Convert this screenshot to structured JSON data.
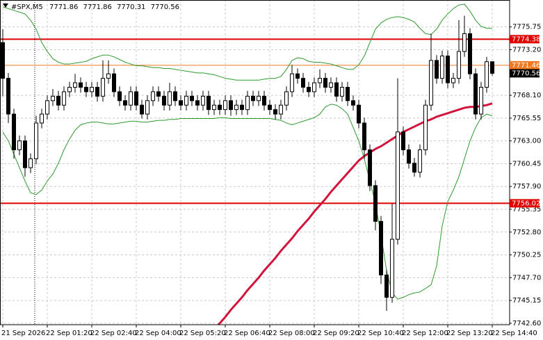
{
  "chart_data": {
    "type": "candlestick",
    "symbol": "#SPX,M5",
    "categories": [
      "21 Sep 2026",
      null,
      null,
      null,
      null,
      null,
      null,
      null,
      "22 Sep 01:20",
      null,
      null,
      null,
      null,
      null,
      null,
      null,
      "22 Sep 02:40",
      null,
      null,
      null,
      null,
      null,
      null,
      null,
      "22 Sep 04:00",
      null,
      null,
      null,
      null,
      null,
      null,
      null,
      "22 Sep 05:20",
      null,
      null,
      null,
      null,
      null,
      null,
      null,
      "22 Sep 06:40",
      null,
      null,
      null,
      null,
      null,
      null,
      null,
      "22 Sep 08:00",
      null,
      null,
      null,
      null,
      null,
      null,
      null,
      "22 Sep 09:20",
      null,
      null,
      null,
      null,
      null,
      null,
      null,
      "22 Sep 10:40",
      null,
      null,
      null,
      null,
      null,
      null,
      null,
      "22 Sep 12:00",
      null,
      null,
      null,
      null,
      null,
      null,
      null,
      "22 Sep 13:20",
      null,
      null,
      null,
      null,
      null,
      null,
      null,
      "22 Sep 14:40"
    ],
    "open": [
      7774,
      7770,
      7766,
      7762,
      7763,
      7760,
      7761,
      7765,
      7766,
      7767.5,
      7768,
      7767,
      7768.5,
      7769,
      7769.5,
      7769,
      7768.5,
      7769,
      7768,
      7770,
      7770.5,
      7768.5,
      7767.5,
      7767,
      7768.5,
      7767,
      7766,
      7767.5,
      7768.5,
      7768,
      7767,
      7768.5,
      7767.5,
      7767,
      7768,
      7767.5,
      7767,
      7768,
      7766.5,
      7767,
      7766.5,
      7767.5,
      7766.5,
      7767,
      7766.5,
      7768,
      7767.5,
      7768,
      7767,
      7766.5,
      7766,
      7767,
      7768.5,
      7770.5,
      7770,
      7769,
      7768.5,
      7769.5,
      7770,
      7769,
      7769.5,
      7768,
      7769,
      7767.5,
      7767,
      7765,
      7762,
      7758,
      7754,
      7748,
      7745.5,
      7752,
      7764,
      7762,
      7760.5,
      7759.5,
      7762,
      7767,
      7772,
      7770,
      7772.5,
      7769.5,
      7770,
      7773,
      7775,
      7770.5,
      7766,
      7769,
      7771.86
    ],
    "high": [
      7775.5,
      7770.6,
      7766.6,
      7763.6,
      7763.6,
      7761.6,
      7765.8,
      7766.6,
      7768.1,
      7768.8,
      7768.6,
      7769.1,
      7769.6,
      7770.5,
      7770.1,
      7769.6,
      7769.6,
      7769.6,
      7772,
      7772,
      7771.1,
      7769.1,
      7768.1,
      7769.1,
      7769.1,
      7767.6,
      7768.1,
      7769.1,
      7769.1,
      7768.6,
      7769.5,
      7769.1,
      7768.1,
      7768.6,
      7768.6,
      7768.1,
      7768.6,
      7768.6,
      7767.6,
      7767.6,
      7768.1,
      7768.1,
      7767.6,
      7767.6,
      7768.6,
      7768.6,
      7768.6,
      7768.6,
      7767.6,
      7767.1,
      7767.6,
      7769.1,
      7771.5,
      7771.1,
      7770.6,
      7769.6,
      7770.1,
      7771,
      7770.6,
      7770.1,
      7770.1,
      7769.6,
      7769.6,
      7768.1,
      7767.6,
      7765.6,
      7762.6,
      7758.6,
      7754.6,
      7748.6,
      7756,
      7770,
      7764.6,
      7762.6,
      7761.1,
      7762.6,
      7767.6,
      7775,
      7772.6,
      7773.1,
      7773.1,
      7770.6,
      7776.5,
      7777,
      7775.6,
      7771.1,
      7769.6,
      7772.4,
      7771.86
    ],
    "low": [
      7768,
      7765,
      7761,
      7761.4,
      7759,
      7759.4,
      7760.4,
      7764.4,
      7765.4,
      7766.9,
      7766.4,
      7766.4,
      7767.9,
      7768.4,
      7768.4,
      7767.9,
      7767.9,
      7767.4,
      7767.4,
      7769.4,
      7767.9,
      7766.9,
      7766.4,
      7766.4,
      7766.4,
      7765.5,
      7765.4,
      7766.9,
      7767.4,
      7766.4,
      7766.4,
      7766.9,
      7766.4,
      7766.4,
      7766.9,
      7766.4,
      7766.4,
      7765.9,
      7765.9,
      7765.9,
      7765.9,
      7765.8,
      7765.9,
      7765.9,
      7765.9,
      7766.9,
      7766.9,
      7766.4,
      7765.9,
      7765.4,
      7765.4,
      7766.4,
      7767.9,
      7769.4,
      7768.4,
      7767.9,
      7767.9,
      7768.9,
      7768.4,
      7768.4,
      7767.4,
      7767.4,
      7766.9,
      7766.4,
      7764.4,
      7761,
      7757.4,
      7753,
      7747,
      7744,
      7744.9,
      7751.4,
      7761.4,
      7759.9,
      7759,
      7758.9,
      7761.4,
      7766.4,
      7769.4,
      7769.4,
      7768.9,
      7768.9,
      7769.4,
      7772.4,
      7769.9,
      7765.4,
      7765.4,
      7768.4,
      7770.31
    ],
    "close": [
      7770,
      7766,
      7762,
      7763,
      7760,
      7761,
      7765,
      7766,
      7767.5,
      7768,
      7767,
      7768.5,
      7769,
      7769.5,
      7769,
      7768.5,
      7769,
      7768,
      7770,
      7770.5,
      7768.5,
      7767.5,
      7767,
      7768.5,
      7767,
      7766,
      7767.5,
      7768.5,
      7768,
      7767,
      7768.5,
      7767.5,
      7767,
      7768,
      7767.5,
      7767,
      7768,
      7766.5,
      7767,
      7766.5,
      7767.5,
      7766.5,
      7767,
      7766.5,
      7768,
      7767.5,
      7768,
      7767,
      7766.5,
      7766,
      7767,
      7768.5,
      7770.5,
      7770,
      7769,
      7768.5,
      7769.5,
      7770,
      7769,
      7769.5,
      7768,
      7769,
      7767.5,
      7767,
      7765,
      7762,
      7758,
      7754,
      7748,
      7745.5,
      7752,
      7764,
      7762,
      7760.5,
      7759.5,
      7762,
      7767,
      7772,
      7770,
      7772.5,
      7769.5,
      7770,
      7773,
      7775,
      7770.5,
      7766,
      7769,
      7771.86,
      7770.56
    ],
    "lines": [
      {
        "color": "#d2143c",
        "values": [
          null,
          null,
          null,
          null,
          null,
          null,
          null,
          null,
          null,
          null,
          null,
          null,
          null,
          null,
          null,
          null,
          null,
          null,
          null,
          null,
          null,
          null,
          null,
          null,
          null,
          null,
          null,
          null,
          null,
          null,
          null,
          null,
          null,
          null,
          null,
          null,
          null,
          null,
          7741.9,
          7742.6,
          7743.3,
          7744.1,
          7744.8,
          7745.5,
          7746.3,
          7747,
          7747.7,
          7748.5,
          7749.2,
          7749.9,
          7750.7,
          7751.4,
          7752.1,
          7752.9,
          7753.6,
          7754.3,
          7755.1,
          7755.8,
          7756.5,
          7757.3,
          7758,
          7758.7,
          7759.4,
          7760.1,
          7760.8,
          7761.3,
          7761.7,
          7762.1,
          7762.4,
          7762.8,
          7763.2,
          7763.6,
          7764,
          7764.3,
          7764.6,
          7764.9,
          7765.2,
          7765.4,
          7765.7,
          7765.9,
          7766.1,
          7766.3,
          7766.5,
          7766.7,
          7766.8,
          7766.8,
          7766.9,
          7767,
          7767.2
        ]
      },
      {
        "color": "#2e9a2e",
        "values": [
          7778,
          7777.8,
          7777.6,
          7777.4,
          7777.2,
          7776.5,
          7775.5,
          7774,
          7773,
          7772.2,
          7771.8,
          7771.6,
          7771.6,
          7771.7,
          7771.8,
          7771.9,
          7772.2,
          7772.4,
          7772.6,
          7772.6,
          7772.4,
          7772.1,
          7771.8,
          7771.6,
          7771.4,
          7771.4,
          7771.3,
          7771.2,
          7771.2,
          7771.1,
          7771.1,
          7771,
          7770.9,
          7770.8,
          7770.7,
          7770.6,
          7770.6,
          7770.5,
          7770.4,
          7770.2,
          7770,
          7769.9,
          7769.8,
          7769.8,
          7769.8,
          7769.8,
          7769.8,
          7769.9,
          7770,
          7770,
          7770.2,
          7771,
          7772,
          7772.3,
          7772.2,
          7771.9,
          7771.8,
          7771.8,
          7771.7,
          7771.6,
          7771.4,
          7771.2,
          7771,
          7771,
          7771.5,
          7772.5,
          7774,
          7775.5,
          7776.2,
          7776.6,
          7776.8,
          7776.9,
          7776.8,
          7776.6,
          7776.3,
          7775.6,
          7775,
          7774.9,
          7775.5,
          7776.5,
          7777.2,
          7777.8,
          7778.2,
          7778.3,
          7777.5,
          7776.5,
          7775.8,
          7775.6,
          7775.6
        ]
      },
      {
        "color": "#2e9a2e",
        "values": [
          7764,
          7763,
          7761.5,
          7760,
          7758.5,
          7757.2,
          7757,
          7757.5,
          7758.5,
          7759.3,
          7760.5,
          7762,
          7763.2,
          7764.2,
          7764.8,
          7765,
          7765.1,
          7765.1,
          7765,
          7764.9,
          7764.9,
          7765,
          7765.1,
          7765.2,
          7765.2,
          7765.1,
          7765.1,
          7765.2,
          7765.3,
          7765.3,
          7765.4,
          7765.4,
          7765.5,
          7765.5,
          7765.5,
          7765.5,
          7765.5,
          7765.5,
          7765.5,
          7765.6,
          7765.6,
          7765.5,
          7765.5,
          7765.5,
          7765.5,
          7765.5,
          7765.5,
          7765.5,
          7765.5,
          7765.4,
          7765.3,
          7765,
          7764.8,
          7765,
          7765.2,
          7765.4,
          7765.6,
          7766,
          7766.8,
          7767.1,
          7767,
          7766.6,
          7766,
          7764.5,
          7763,
          7761,
          7758.5,
          7756,
          7752.5,
          7748.5,
          7746,
          7745.3,
          7745.5,
          7745.8,
          7746,
          7746.1,
          7746.5,
          7746.9,
          7749,
          7753.5,
          7756.2,
          7757.5,
          7759,
          7761,
          7763,
          7764.5,
          7765.6,
          7766,
          7765.8
        ]
      }
    ],
    "hlines": [
      {
        "value": 7774.38,
        "color": "#e00000"
      },
      {
        "value": 7771.46,
        "color": "#f07820"
      },
      {
        "value": 7756.02,
        "color": "#e00000"
      }
    ],
    "ylim": [
      7742.44,
      7778.76
    ],
    "yticks": [
      7775.75,
      {
        "value": 7773.2,
        "label": "7773.20"
      },
      {
        "value": 7768.1,
        "label": "7768.10"
      },
      7765.55,
      {
        "value": 7763,
        "label": "7763.00"
      },
      7760.45,
      {
        "value": 7757.9,
        "label": "7757.90"
      },
      7755.35,
      {
        "value": 7752.8,
        "label": "7752.80"
      },
      7750.25,
      {
        "value": 7747.7,
        "label": "7747.70"
      },
      7745.15,
      {
        "value": 7742.6,
        "label": "7742.60"
      }
    ],
    "grid": true
  }
}
